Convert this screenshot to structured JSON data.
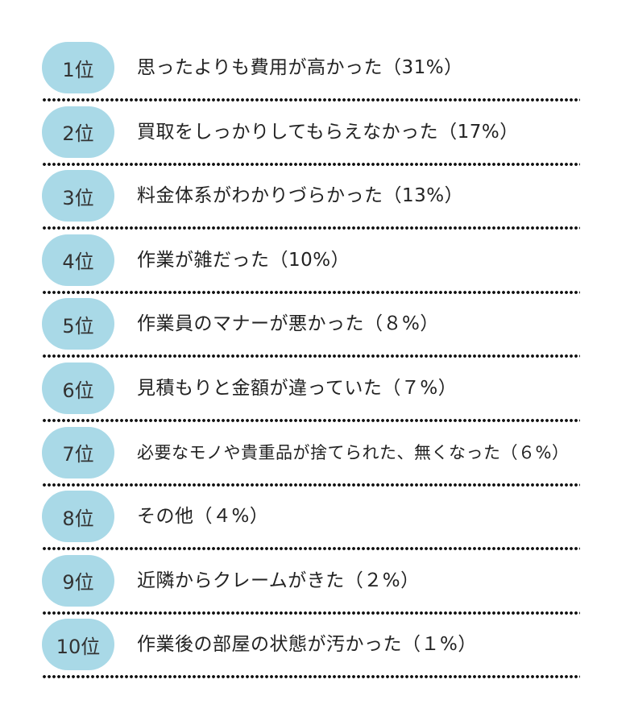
{
  "items": [
    {
      "rank": "1位",
      "text": "思ったよりも費用が高かった（31%）"
    },
    {
      "rank": "2位",
      "text": "買取をしっかりしてもらえなかった（17%）"
    },
    {
      "rank": "3位",
      "text": "料金体系がわかりづらかった（13%）"
    },
    {
      "rank": "4位",
      "text": "作業が雑だった（10%）"
    },
    {
      "rank": "5位",
      "text": "作業員のマナーが悪かった（８%）"
    },
    {
      "rank": "6位",
      "text": "見積もりと金額が違っていた（７%）"
    },
    {
      "rank": "7位",
      "text": "必要なモノや貴重品が捨てられた、無くなった（６%）"
    },
    {
      "rank": "8位",
      "text": "その他（４%）"
    },
    {
      "rank": "9位",
      "text": "近隣からクレームがきた（２%）"
    },
    {
      "rank": "10位",
      "text": "作業後の部屋の状態が汚かった（１%）"
    }
  ]
}
